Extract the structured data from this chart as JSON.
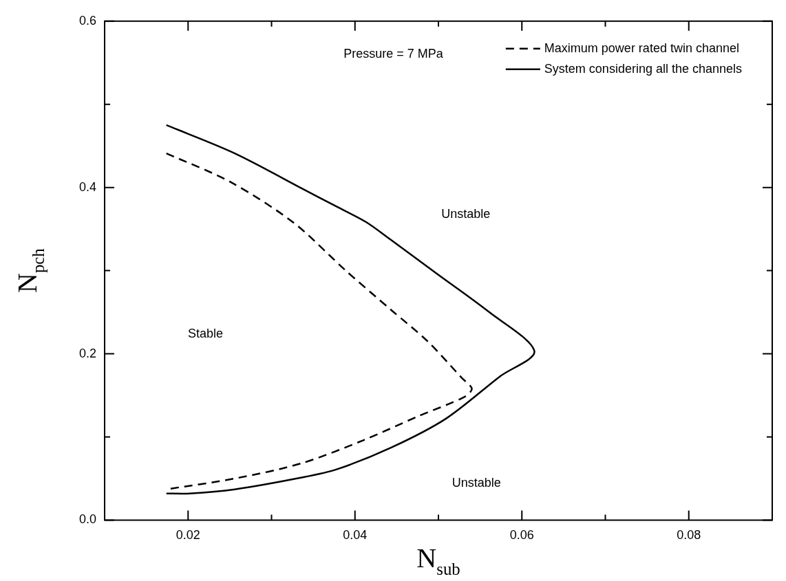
{
  "chart_data": {
    "type": "line",
    "xlabel": "N$_{sub}$",
    "ylabel": "N$_{pch}$",
    "xlim": [
      0.01,
      0.09
    ],
    "ylim": [
      0.0,
      0.6
    ],
    "xticks": [
      {
        "value": 0.01,
        "label": null
      },
      {
        "value": 0.02,
        "label": "0.02"
      },
      {
        "value": 0.03,
        "label": null
      },
      {
        "value": 0.04,
        "label": "0.04"
      },
      {
        "value": 0.05,
        "label": null
      },
      {
        "value": 0.06,
        "label": "0.06"
      },
      {
        "value": 0.07,
        "label": null
      },
      {
        "value": 0.08,
        "label": "0.08"
      },
      {
        "value": 0.09,
        "label": null
      }
    ],
    "yticks": [
      {
        "value": 0.0,
        "label": "0.0"
      },
      {
        "value": 0.1,
        "label": null
      },
      {
        "value": 0.2,
        "label": "0.2"
      },
      {
        "value": 0.3,
        "label": null
      },
      {
        "value": 0.4,
        "label": "0.4"
      },
      {
        "value": 0.5,
        "label": null
      },
      {
        "value": 0.6,
        "label": "0.6"
      }
    ],
    "grid": false,
    "legend": "top right",
    "marker": "none",
    "series": [
      {
        "name": "Maximum power rated twin channel",
        "color": "#000000",
        "line_style": "dashed",
        "x": [
          0.0174,
          0.025,
          0.0326,
          0.0389,
          0.0443,
          0.0487,
          0.0528,
          0.054,
          0.0531,
          0.0476,
          0.041,
          0.0335,
          0.0256,
          0.0174
        ],
        "values": [
          0.441,
          0.407,
          0.358,
          0.3,
          0.253,
          0.215,
          0.171,
          0.158,
          0.148,
          0.125,
          0.096,
          0.068,
          0.05,
          0.037
        ]
      },
      {
        "name": "System considering all the channels",
        "color": "#000000",
        "line_style": "solid",
        "x": [
          0.0174,
          0.0256,
          0.0338,
          0.0378,
          0.0414,
          0.0443,
          0.05,
          0.0561,
          0.0615,
          0.0574,
          0.0509,
          0.0443,
          0.0378,
          0.0335,
          0.0256,
          0.0202,
          0.0174
        ],
        "values": [
          0.475,
          0.441,
          0.398,
          0.377,
          0.358,
          0.337,
          0.295,
          0.25,
          0.203,
          0.173,
          0.122,
          0.087,
          0.061,
          0.051,
          0.037,
          0.032,
          0.032
        ]
      }
    ],
    "annotations": [
      "Pressure = 7 MPa",
      "Unstable",
      "Stable",
      "Unstable"
    ]
  }
}
